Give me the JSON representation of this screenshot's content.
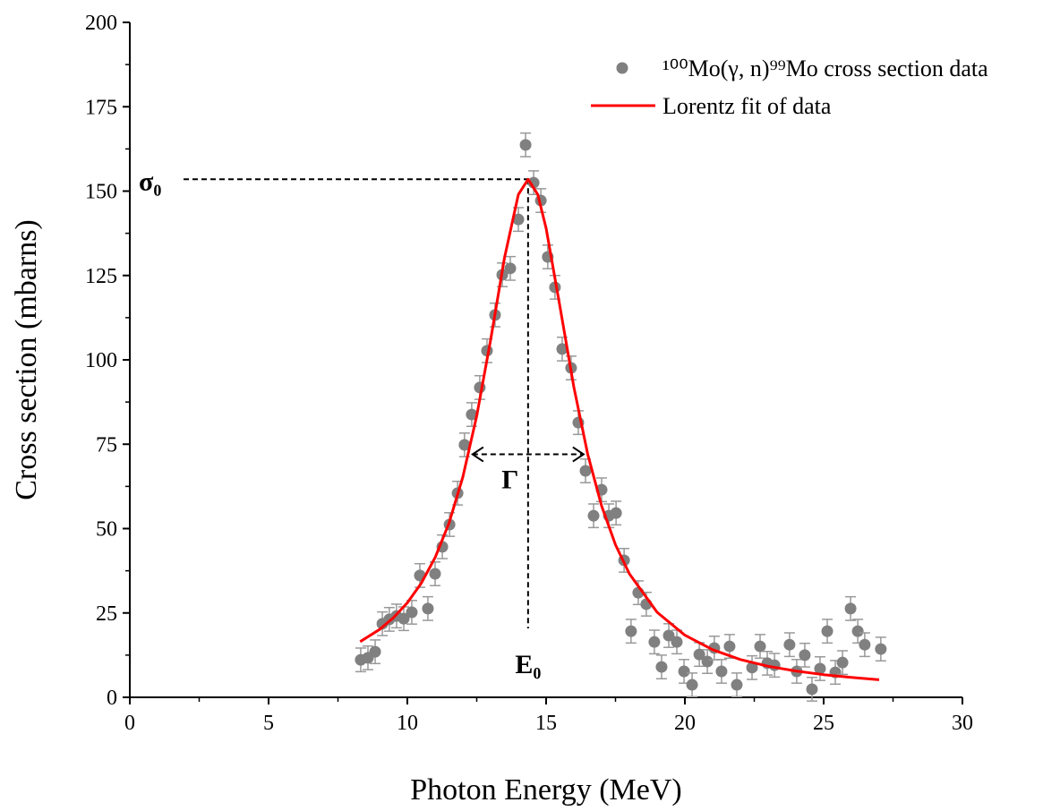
{
  "chart_data": {
    "type": "scatter",
    "x_label": "Photon Energy (MeV)",
    "y_label": "Cross section (mbarns)",
    "xlim": [
      0,
      30
    ],
    "xticks": [
      0,
      5,
      10,
      15,
      20,
      25,
      30
    ],
    "ylim": [
      0,
      200
    ],
    "yticks": [
      0,
      25,
      50,
      75,
      100,
      125,
      150,
      175,
      200
    ],
    "legend": "top-right",
    "series": [
      {
        "name": "¹⁰⁰Mo(γ, n)⁹⁹Mo cross section data",
        "kind": "points",
        "color": "#808080",
        "error": 3.5,
        "x": [
          8.32,
          8.58,
          8.84,
          9.1,
          9.35,
          9.61,
          9.87,
          10.16,
          10.45,
          10.74,
          11.0,
          11.26,
          11.52,
          11.81,
          12.06,
          12.32,
          12.61,
          12.87,
          13.16,
          13.42,
          13.71,
          14.0,
          14.26,
          14.55,
          14.81,
          15.06,
          15.32,
          15.58,
          15.9,
          16.16,
          16.42,
          16.71,
          17.0,
          17.26,
          17.52,
          17.81,
          18.06,
          18.32,
          18.61,
          18.9,
          19.16,
          19.42,
          19.71,
          19.97,
          20.26,
          20.52,
          20.81,
          21.06,
          21.32,
          21.61,
          21.87,
          22.42,
          22.71,
          22.97,
          23.23,
          23.77,
          24.03,
          24.32,
          24.58,
          24.87,
          25.13,
          25.42,
          25.68,
          25.97,
          26.23,
          26.48,
          27.06
        ],
        "values": [
          11.1,
          11.7,
          13.5,
          21.8,
          23.1,
          24.1,
          23.3,
          25.2,
          36.1,
          26.3,
          36.6,
          44.6,
          51.2,
          60.5,
          74.8,
          83.8,
          91.8,
          102.7,
          113.3,
          125.2,
          127.1,
          141.6,
          163.7,
          152.5,
          147.2,
          130.5,
          121.5,
          103.2,
          97.6,
          81.4,
          67.1,
          53.8,
          61.5,
          53.8,
          54.6,
          40.6,
          19.6,
          31.0,
          27.6,
          16.4,
          9.0,
          18.3,
          16.4,
          7.7,
          3.7,
          12.7,
          10.6,
          14.6,
          7.7,
          15.1,
          3.7,
          8.8,
          15.1,
          10.1,
          9.5,
          15.6,
          7.7,
          12.5,
          2.4,
          8.5,
          19.6,
          7.4,
          10.3,
          26.3,
          19.6,
          15.6,
          14.3
        ]
      },
      {
        "name": "Lorentz fit of data",
        "kind": "line",
        "color": "#ff0000",
        "x": [
          8.3,
          9,
          9.5,
          10,
          10.5,
          11,
          11.5,
          12,
          12.5,
          13,
          13.5,
          14,
          14.35,
          14.7,
          15,
          15.5,
          16,
          16.5,
          17,
          17.5,
          18,
          19,
          20,
          21,
          22,
          23,
          24,
          25,
          26,
          27
        ],
        "values": [
          16.5,
          20.1,
          23.6,
          28.0,
          33.8,
          41.4,
          51.6,
          65.3,
          83.4,
          105.9,
          130.2,
          149.0,
          153.5,
          149.0,
          139.0,
          115.7,
          91.9,
          72.0,
          56.7,
          45.2,
          36.6,
          25.2,
          18.4,
          14.1,
          11.2,
          9.2,
          7.8,
          6.7,
          5.9,
          5.2
        ]
      }
    ],
    "annotations": [
      {
        "text": "σ₀",
        "y": 153.5
      },
      {
        "text": "E₀",
        "x": 14.35
      },
      {
        "text": "Γ",
        "x": [
          12.35,
          16.35
        ],
        "y": 72
      }
    ]
  }
}
